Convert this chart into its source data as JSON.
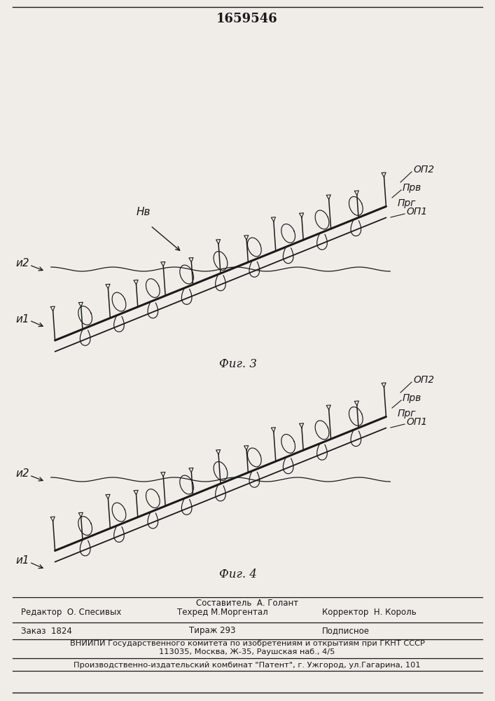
{
  "patent_number": "1659546",
  "fig3_label": "Фиг. 3",
  "fig4_label": "Фиг. 4",
  "labels_fig3": {
    "OP2": "ОП2",
    "Prv": "Прв",
    "Prg": "Прг",
    "OP1": "ОП1",
    "Hv": "Нв",
    "I2": "и2",
    "I1": "и1"
  },
  "labels_fig4": {
    "OP2": "ОП2",
    "Prv": "Прв",
    "Prg": "Прг",
    "OP1": "ОП1",
    "I2": "и2",
    "I1": "и1"
  },
  "editor_line": "Редактор  О. Спесивых",
  "composer_line1": "Составитель  А. Голант",
  "composer_line2": "Техред М.Моргентал",
  "corrector_line": "Корректор  Н. Король",
  "order_line": "Заказ  1824",
  "tirage_line": "Тираж 293",
  "podpisnoe_line": "Подписное",
  "vniipи_line": "ВНИИПИ Государственного комитета по изобретениям и открытиям при ГКНТ СССР",
  "address_line": "113035, Москва, Ж-35, Раушская наб., 4/5",
  "production_line": "Производственно-издательский комбинат \"Патент\", г. Ужгород, ул.Гагарина, 101",
  "bg_color": "#f0ede8",
  "line_color": "#1a1a1a",
  "text_color": "#1a1a1a"
}
